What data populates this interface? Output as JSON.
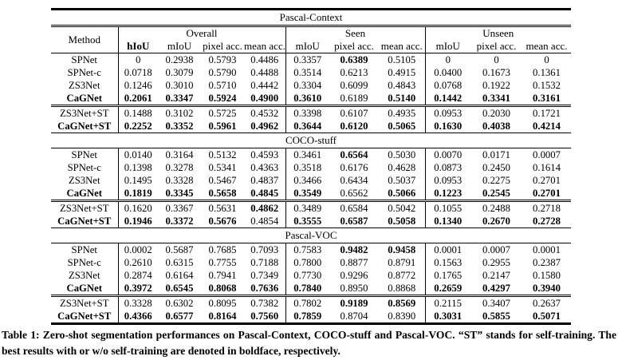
{
  "table": {
    "col_headers": {
      "method": "Method",
      "groups": [
        {
          "label": "Overall",
          "cols": [
            "hIoU",
            "mIoU",
            "pixel acc.",
            "mean acc."
          ]
        },
        {
          "label": "Seen",
          "cols": [
            "mIoU",
            "pixel acc.",
            "mean acc."
          ]
        },
        {
          "label": "Unseen",
          "cols": [
            "mIoU",
            "pixel acc.",
            "mean acc."
          ]
        }
      ]
    },
    "sections": [
      {
        "title": "Pascal-Context",
        "rows": [
          {
            "method": "SPNet",
            "bold_method": false,
            "divider_above": false,
            "values": [
              "0",
              "0.2938",
              "0.5793",
              "0.4486",
              "0.3357",
              "0.6389",
              "0.5105",
              "0",
              "0",
              "0"
            ],
            "bold": [
              0,
              0,
              0,
              0,
              0,
              1,
              0,
              0,
              0,
              0
            ]
          },
          {
            "method": "SPNet-c",
            "bold_method": false,
            "divider_above": false,
            "values": [
              "0.0718",
              "0.3079",
              "0.5790",
              "0.4488",
              "0.3514",
              "0.6213",
              "0.4915",
              "0.0400",
              "0.1673",
              "0.1361"
            ],
            "bold": [
              0,
              0,
              0,
              0,
              0,
              0,
              0,
              0,
              0,
              0
            ]
          },
          {
            "method": "ZS3Net",
            "bold_method": false,
            "divider_above": false,
            "values": [
              "0.1246",
              "0.3010",
              "0.5710",
              "0.4442",
              "0.3304",
              "0.6099",
              "0.4843",
              "0.0768",
              "0.1922",
              "0.1532"
            ],
            "bold": [
              0,
              0,
              0,
              0,
              0,
              0,
              0,
              0,
              0,
              0
            ]
          },
          {
            "method": "CaGNet",
            "bold_method": true,
            "divider_above": false,
            "values": [
              "0.2061",
              "0.3347",
              "0.5924",
              "0.4900",
              "0.3610",
              "0.6189",
              "0.5140",
              "0.1442",
              "0.3341",
              "0.3161"
            ],
            "bold": [
              1,
              1,
              1,
              1,
              1,
              0,
              1,
              1,
              1,
              1
            ]
          },
          {
            "method": "ZS3Net+ST",
            "bold_method": false,
            "divider_above": true,
            "values": [
              "0.1488",
              "0.3102",
              "0.5725",
              "0.4532",
              "0.3398",
              "0.6107",
              "0.4935",
              "0.0953",
              "0.2030",
              "0.1721"
            ],
            "bold": [
              0,
              0,
              0,
              0,
              0,
              0,
              0,
              0,
              0,
              0
            ]
          },
          {
            "method": "CaGNet+ST",
            "bold_method": true,
            "divider_above": false,
            "values": [
              "0.2252",
              "0.3352",
              "0.5961",
              "0.4962",
              "0.3644",
              "0.6120",
              "0.5065",
              "0.1630",
              "0.4038",
              "0.4214"
            ],
            "bold": [
              1,
              1,
              1,
              1,
              1,
              1,
              1,
              1,
              1,
              1
            ]
          }
        ]
      },
      {
        "title": "COCO-stuff",
        "rows": [
          {
            "method": "SPNet",
            "bold_method": false,
            "divider_above": false,
            "values": [
              "0.0140",
              "0.3164",
              "0.5132",
              "0.4593",
              "0.3461",
              "0.6564",
              "0.5030",
              "0.0070",
              "0.0171",
              "0.0007"
            ],
            "bold": [
              0,
              0,
              0,
              0,
              0,
              1,
              0,
              0,
              0,
              0
            ]
          },
          {
            "method": "SPNet-c",
            "bold_method": false,
            "divider_above": false,
            "values": [
              "0.1398",
              "0.3278",
              "0.5341",
              "0.4363",
              "0.3518",
              "0.6176",
              "0.4628",
              "0.0873",
              "0.2450",
              "0.1614"
            ],
            "bold": [
              0,
              0,
              0,
              0,
              0,
              0,
              0,
              0,
              0,
              0
            ]
          },
          {
            "method": "ZS3Net",
            "bold_method": false,
            "divider_above": false,
            "values": [
              "0.1495",
              "0.3328",
              "0.5467",
              "0.4837",
              "0.3466",
              "0.6434",
              "0.5037",
              "0.0953",
              "0.2275",
              "0.2701"
            ],
            "bold": [
              0,
              0,
              0,
              0,
              0,
              0,
              0,
              0,
              0,
              0
            ]
          },
          {
            "method": "CaGNet",
            "bold_method": true,
            "divider_above": false,
            "values": [
              "0.1819",
              "0.3345",
              "0.5658",
              "0.4845",
              "0.3549",
              "0.6562",
              "0.5066",
              "0.1223",
              "0.2545",
              "0.2701"
            ],
            "bold": [
              1,
              1,
              1,
              1,
              1,
              0,
              1,
              1,
              1,
              1
            ]
          },
          {
            "method": "ZS3Net+ST",
            "bold_method": false,
            "divider_above": true,
            "values": [
              "0.1620",
              "0.3367",
              "0.5631",
              "0.4862",
              "0.3489",
              "0.6584",
              "0.5042",
              "0.1055",
              "0.2488",
              "0.2718"
            ],
            "bold": [
              0,
              0,
              0,
              1,
              0,
              0,
              0,
              0,
              0,
              0
            ]
          },
          {
            "method": "CaGNet+ST",
            "bold_method": true,
            "divider_above": false,
            "values": [
              "0.1946",
              "0.3372",
              "0.5676",
              "0.4854",
              "0.3555",
              "0.6587",
              "0.5058",
              "0.1340",
              "0.2670",
              "0.2728"
            ],
            "bold": [
              1,
              1,
              1,
              0,
              1,
              1,
              1,
              1,
              1,
              1
            ]
          }
        ]
      },
      {
        "title": "Pascal-VOC",
        "rows": [
          {
            "method": "SPNet",
            "bold_method": false,
            "divider_above": false,
            "values": [
              "0.0002",
              "0.5687",
              "0.7685",
              "0.7093",
              "0.7583",
              "0.9482",
              "0.9458",
              "0.0001",
              "0.0007",
              "0.0001"
            ],
            "bold": [
              0,
              0,
              0,
              0,
              0,
              1,
              1,
              0,
              0,
              0
            ]
          },
          {
            "method": "SPNet-c",
            "bold_method": false,
            "divider_above": false,
            "values": [
              "0.2610",
              "0.6315",
              "0.7755",
              "0.7188",
              "0.7800",
              "0.8877",
              "0.8791",
              "0.1563",
              "0.2955",
              "0.2387"
            ],
            "bold": [
              0,
              0,
              0,
              0,
              0,
              0,
              0,
              0,
              0,
              0
            ]
          },
          {
            "method": "ZS3Net",
            "bold_method": false,
            "divider_above": false,
            "values": [
              "0.2874",
              "0.6164",
              "0.7941",
              "0.7349",
              "0.7730",
              "0.9296",
              "0.8772",
              "0.1765",
              "0.2147",
              "0.1580"
            ],
            "bold": [
              0,
              0,
              0,
              0,
              0,
              0,
              0,
              0,
              0,
              0
            ]
          },
          {
            "method": "CaGNet",
            "bold_method": true,
            "divider_above": false,
            "values": [
              "0.3972",
              "0.6545",
              "0.8068",
              "0.7636",
              "0.7840",
              "0.8950",
              "0.8868",
              "0.2659",
              "0.4297",
              "0.3940"
            ],
            "bold": [
              1,
              1,
              1,
              1,
              1,
              0,
              0,
              1,
              1,
              1
            ]
          },
          {
            "method": "ZS3Net+ST",
            "bold_method": false,
            "divider_above": true,
            "values": [
              "0.3328",
              "0.6302",
              "0.8095",
              "0.7382",
              "0.7802",
              "0.9189",
              "0.8569",
              "0.2115",
              "0.3407",
              "0.2637"
            ],
            "bold": [
              0,
              0,
              0,
              0,
              0,
              1,
              1,
              0,
              0,
              0
            ]
          },
          {
            "method": "CaGNet+ST",
            "bold_method": true,
            "divider_above": false,
            "values": [
              "0.4366",
              "0.6577",
              "0.8164",
              "0.7560",
              "0.7859",
              "0.8704",
              "0.8390",
              "0.3031",
              "0.5855",
              "0.5071"
            ],
            "bold": [
              1,
              1,
              1,
              1,
              1,
              0,
              0,
              1,
              1,
              1
            ]
          }
        ]
      }
    ]
  },
  "caption": {
    "text": "Table 1: Zero-shot segmentation performances on Pascal-Context, COCO-stuff and Pascal-VOC. “ST” stands for self-training. The best results with or w/o self-training are denoted in boldface, respectively."
  }
}
